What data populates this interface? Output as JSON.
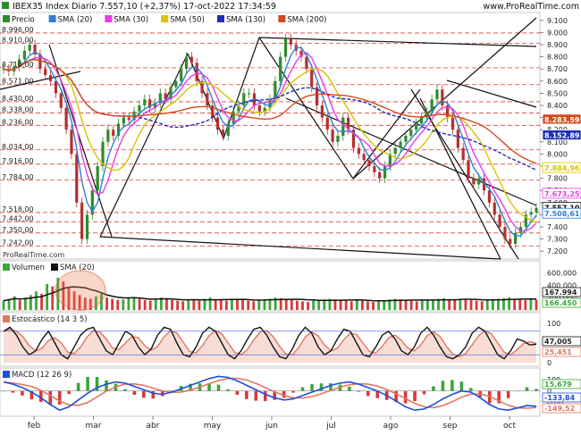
{
  "header": {
    "title": "IBEX35 Index Diario 7.557,10 (+2,37%) 17-oct-2022 17:34:59",
    "brand": "www.ProRealTime.com",
    "source": "ProRealTime.com"
  },
  "colors": {
    "price_line": "#333333",
    "candle_up": "#2e8b2e",
    "candle_down": "#b23030",
    "sma20": "#2f7fd6",
    "sma30": "#e63de6",
    "sma50": "#d8c400",
    "sma130": "#1c2fb8",
    "sma200": "#d24a1a",
    "dashed_red": "#e03c3c",
    "vol_up": "#3aa83a",
    "vol_down": "#d63a3a",
    "stoch_k": "#111111",
    "stoch_d": "#e2775f",
    "macd_line": "#2050d8",
    "macd_signal": "#e2775f"
  },
  "months": [
    "feb",
    "mar",
    "abr",
    "may",
    "jun",
    "jul",
    "ago",
    "sep",
    "oct"
  ],
  "chart_data": [
    {
      "type": "line",
      "panel": "price",
      "legend": [
        "Precio",
        "SMA (20)",
        "SMA (30)",
        "SMA (50)",
        "SMA (130)",
        "SMA (200)"
      ],
      "ylim": [
        7150,
        9150
      ],
      "right_ticks": [
        "9.100",
        "9.000",
        "8.900",
        "8.800",
        "8.700",
        "8.600",
        "8.500",
        "8.400",
        "8.300",
        "8.200",
        "8.100",
        "8.000",
        "7.900",
        "7.800",
        "7.700",
        "7.600",
        "7.500",
        "7.400",
        "7.300",
        "7.200"
      ],
      "left_levels": [
        "8.996,00",
        "8.910,00",
        "8.710,00",
        "8.571,00",
        "8.430,00",
        "8.338,00",
        "8.236,00",
        "8.034,00",
        "7.916,00",
        "7.784,00",
        "7.518,00",
        "7.442,00",
        "7.350,00",
        "7.242,00"
      ],
      "last_values": {
        "sma200": "8.283,59",
        "sma130": "8.152,89",
        "sma50": "7.884,96",
        "sma30": "7.673,25",
        "price": "7.557,10",
        "sma20": "7.508,61"
      },
      "series": {
        "price": [
          8700,
          8680,
          8720,
          8780,
          8850,
          8900,
          8820,
          8700,
          8650,
          8600,
          8500,
          8380,
          8200,
          8000,
          7600,
          7300,
          7500,
          7700,
          7900,
          8100,
          8200,
          8150,
          8250,
          8300,
          8280,
          8350,
          8400,
          8450,
          8380,
          8420,
          8500,
          8450,
          8550,
          8600,
          8700,
          8800,
          8750,
          8600,
          8500,
          8400,
          8300,
          8200,
          8150,
          8250,
          8350,
          8400,
          8500,
          8500,
          8400,
          8350,
          8380,
          8450,
          8600,
          8800,
          8950,
          8900,
          8850,
          8800,
          8700,
          8550,
          8400,
          8300,
          8200,
          8100,
          8150,
          8300,
          8200,
          8050,
          8000,
          7950,
          7900,
          7850,
          7800,
          7900,
          8000,
          8050,
          8100,
          8150,
          8200,
          8250,
          8300,
          8350,
          8450,
          8530,
          8400,
          8300,
          8200,
          8050,
          7950,
          7800,
          7750,
          7800,
          7700,
          7600,
          7500,
          7400,
          7300,
          7260,
          7350,
          7400,
          7500,
          7520,
          7557
        ]
      }
    },
    {
      "type": "bar",
      "panel": "volume",
      "legend": [
        "Volumen",
        "SMA (20)"
      ],
      "right_ticks": [
        "600.000",
        "400.000",
        "200.000"
      ],
      "last_values": {
        "sma20": "167.994",
        "volume": "166.450"
      },
      "values": [
        150,
        180,
        220,
        160,
        200,
        240,
        300,
        260,
        420,
        380,
        520,
        460,
        350,
        300,
        240,
        200,
        180,
        220,
        260,
        200,
        180,
        160,
        170,
        190,
        210,
        180,
        160,
        150,
        170,
        200,
        180,
        160,
        150,
        140,
        170,
        160,
        150,
        180,
        200,
        170,
        160,
        150,
        180,
        170,
        160,
        150,
        140,
        160,
        170,
        180,
        200,
        190,
        170,
        160,
        150,
        140,
        130,
        150,
        160,
        170,
        180,
        170,
        160,
        150,
        140,
        160,
        150,
        140,
        130,
        150,
        160,
        170,
        180,
        170,
        160,
        150,
        140,
        150,
        160,
        170,
        180,
        190,
        170,
        160,
        180,
        170,
        160,
        150,
        140,
        160,
        170,
        180,
        190,
        200,
        180,
        170,
        160,
        170,
        166
      ]
    },
    {
      "type": "line",
      "panel": "stochastic",
      "legend": [
        "Estocástico (14 3 5)"
      ],
      "right_ticks": [
        "100",
        "0"
      ],
      "last_values": {
        "k": "47,005",
        "d": "25,451"
      },
      "k": [
        80,
        90,
        70,
        40,
        20,
        30,
        60,
        80,
        50,
        20,
        10,
        40,
        70,
        85,
        90,
        60,
        30,
        20,
        50,
        80,
        70,
        40,
        20,
        35,
        70,
        90,
        85,
        50,
        20,
        15,
        40,
        75,
        90,
        80,
        50,
        20,
        10,
        30,
        60,
        85,
        90,
        70,
        40,
        15,
        10,
        35,
        70,
        90,
        75,
        40,
        20,
        30,
        60,
        85,
        80,
        50,
        20,
        15,
        40,
        70,
        80,
        60,
        30,
        20,
        40,
        75,
        90,
        70,
        40,
        15,
        10,
        20,
        40,
        75,
        90,
        80,
        50,
        20,
        10,
        30,
        60,
        55,
        45,
        47
      ]
    },
    {
      "type": "line",
      "panel": "macd",
      "legend": [
        "MACD (12 26 9)"
      ],
      "right_ticks": [
        "100",
        "0",
        "-100"
      ],
      "last_values": {
        "hist": "15,679",
        "macd": "-133,84",
        "signal": "-149,52"
      },
      "macd": [
        80,
        60,
        30,
        -10,
        -60,
        -120,
        -170,
        -140,
        -80,
        -20,
        30,
        60,
        80,
        70,
        40,
        10,
        -20,
        -30,
        -10,
        20,
        50,
        80,
        110,
        130,
        120,
        90,
        50,
        10,
        -30,
        -60,
        -80,
        -70,
        -40,
        -10,
        20,
        50,
        70,
        80,
        60,
        30,
        0,
        -40,
        -90,
        -140,
        -170,
        -160,
        -120,
        -70,
        -30,
        0,
        -10,
        -60,
        -120,
        -160,
        -170,
        -150,
        -130,
        -134
      ]
    }
  ]
}
